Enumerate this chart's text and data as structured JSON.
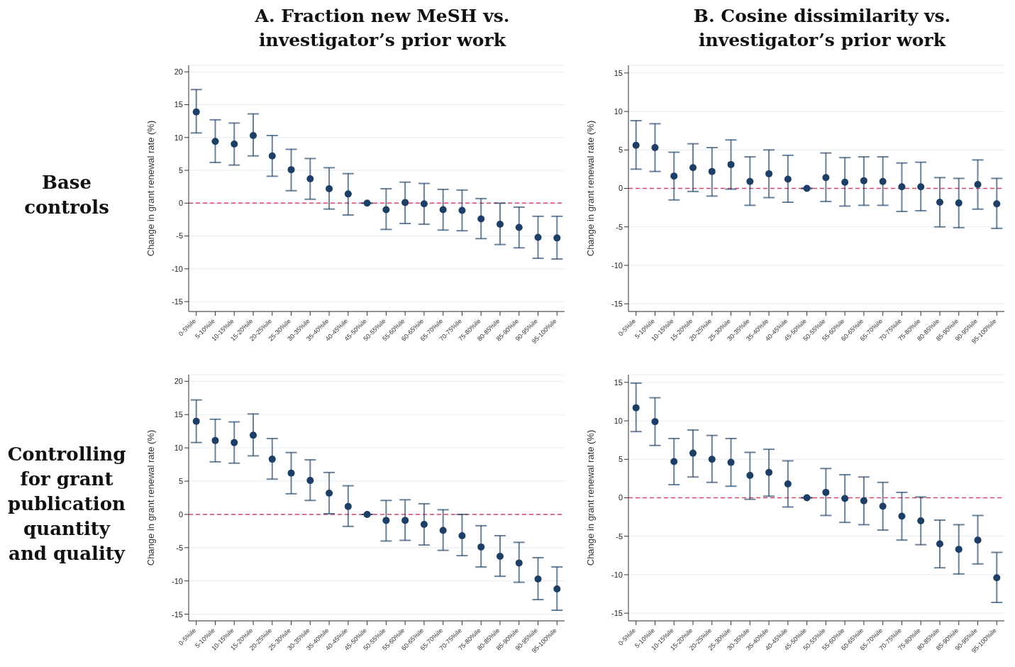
{
  "chart_data": [
    {
      "type": "scatter",
      "title": "A. Fraction new MeSH vs. investigator’s prior work",
      "annotations": [
        "Base controls"
      ],
      "ylabel": "Change in grant renewal rate (%)",
      "categories": [
        "0-5%ile",
        "5-10%ile",
        "10-15%ile",
        "15-20%ile",
        "20-25%ile",
        "25-30%ile",
        "30-35%ile",
        "35-40%ile",
        "40-45%ile",
        "45-50%ile",
        "50-55%ile",
        "55-60%ile",
        "60-65%ile",
        "65-70%ile",
        "70-75%ile",
        "75-80%ile",
        "80-85%ile",
        "85-90%ile",
        "90-95%ile",
        "95-100%ile"
      ],
      "ylim": [
        -16.5,
        21
      ],
      "yticks": [
        -15,
        -10,
        -5,
        0,
        5,
        10,
        15,
        20
      ],
      "grid": "y",
      "marker": "circle",
      "ref_lines": [
        {
          "axis": "y",
          "value": 0,
          "color": "#d9476b",
          "line_style": "dashed"
        }
      ],
      "series": [
        {
          "color": "#1b3f66",
          "values": [
            13.9,
            9.4,
            9.0,
            10.3,
            7.2,
            5.1,
            3.7,
            2.2,
            1.4,
            0,
            -1.0,
            0.1,
            -0.1,
            -1.0,
            -1.1,
            -2.4,
            -3.2,
            -3.7,
            -5.2,
            -5.3
          ],
          "errors": [
            [
              10.7,
              17.3
            ],
            [
              6.2,
              12.7
            ],
            [
              5.8,
              12.2
            ],
            [
              7.2,
              13.6
            ],
            [
              4.1,
              10.3
            ],
            [
              1.9,
              8.2
            ],
            [
              0.6,
              6.8
            ],
            [
              -0.9,
              5.4
            ],
            [
              -1.8,
              4.5
            ],
            null,
            [
              -4.0,
              2.2
            ],
            [
              -3.1,
              3.2
            ],
            [
              -3.2,
              3.0
            ],
            [
              -4.1,
              2.1
            ],
            [
              -4.2,
              2.0
            ],
            [
              -5.4,
              0.7
            ],
            [
              -6.3,
              0.0
            ],
            [
              -6.8,
              -0.6
            ],
            [
              -8.4,
              -2.0
            ],
            [
              -8.5,
              -2.0
            ]
          ]
        }
      ]
    },
    {
      "type": "scatter",
      "title": "B. Cosine dissimilarity vs. investigator’s prior work",
      "ylabel": "Change in grant renewal rate (%)",
      "categories": [
        "0-5%ile",
        "5-10%ile",
        "10-15%ile",
        "15-20%ile",
        "20-25%ile",
        "25-30%ile",
        "30-35%ile",
        "35-40%ile",
        "40-45%ile",
        "45-50%ile",
        "50-55%ile",
        "55-60%ile",
        "60-65%ile",
        "65-70%ile",
        "70-75%ile",
        "75-80%ile",
        "80-85%ile",
        "85-90%ile",
        "90-95%ile",
        "95-100%ile"
      ],
      "ylim": [
        -16,
        16
      ],
      "yticks": [
        -15,
        -10,
        -5,
        0,
        5,
        10,
        15
      ],
      "grid": "y",
      "marker": "circle",
      "ref_lines": [
        {
          "axis": "y",
          "value": 0,
          "color": "#d9476b",
          "line_style": "dashed"
        }
      ],
      "series": [
        {
          "color": "#1b3f66",
          "values": [
            5.6,
            5.3,
            1.6,
            2.7,
            2.2,
            3.1,
            0.9,
            1.9,
            1.2,
            0,
            1.4,
            0.8,
            1.0,
            0.9,
            0.2,
            0.2,
            -1.8,
            -1.9,
            0.5,
            -2.0
          ],
          "errors": [
            [
              2.5,
              8.8
            ],
            [
              2.2,
              8.4
            ],
            [
              -1.5,
              4.7
            ],
            [
              -0.4,
              5.8
            ],
            [
              -1.0,
              5.3
            ],
            [
              -0.1,
              6.3
            ],
            [
              -2.2,
              4.1
            ],
            [
              -1.2,
              5.0
            ],
            [
              -1.8,
              4.3
            ],
            null,
            [
              -1.7,
              4.6
            ],
            [
              -2.3,
              4.0
            ],
            [
              -2.2,
              4.1
            ],
            [
              -2.2,
              4.1
            ],
            [
              -3.0,
              3.3
            ],
            [
              -2.9,
              3.4
            ],
            [
              -5.0,
              1.4
            ],
            [
              -5.1,
              1.3
            ],
            [
              -2.7,
              3.7
            ],
            [
              -5.2,
              1.3
            ]
          ]
        }
      ]
    },
    {
      "type": "scatter",
      "annotations": [
        "Controlling for grant publication quantity and quality"
      ],
      "ylabel": "Change in grant renewal rate (%)",
      "categories": [
        "0-5%ile",
        "5-10%ile",
        "10-15%ile",
        "15-20%ile",
        "20-25%ile",
        "25-30%ile",
        "30-35%ile",
        "35-40%ile",
        "40-45%ile",
        "45-50%ile",
        "50-55%ile",
        "55-60%ile",
        "60-65%ile",
        "65-70%ile",
        "70-75%ile",
        "75-80%ile",
        "80-85%ile",
        "85-90%ile",
        "90-95%ile",
        "95-100%ile"
      ],
      "ylim": [
        -16,
        21
      ],
      "yticks": [
        -15,
        -10,
        -5,
        0,
        5,
        10,
        15,
        20
      ],
      "grid": "y",
      "marker": "circle",
      "ref_lines": [
        {
          "axis": "y",
          "value": 0,
          "color": "#d9476b",
          "line_style": "dashed"
        }
      ],
      "series": [
        {
          "color": "#1b3f66",
          "values": [
            14.0,
            11.1,
            10.8,
            11.9,
            8.3,
            6.2,
            5.1,
            3.2,
            1.2,
            0,
            -0.9,
            -0.9,
            -1.5,
            -2.4,
            -3.2,
            -4.9,
            -6.3,
            -7.3,
            -9.7,
            -11.2
          ],
          "errors": [
            [
              10.8,
              17.2
            ],
            [
              7.9,
              14.3
            ],
            [
              7.7,
              13.9
            ],
            [
              8.8,
              15.1
            ],
            [
              5.3,
              11.4
            ],
            [
              3.1,
              9.3
            ],
            [
              2.1,
              8.2
            ],
            [
              0.1,
              6.3
            ],
            [
              -1.8,
              4.3
            ],
            null,
            [
              -4.0,
              2.1
            ],
            [
              -3.9,
              2.2
            ],
            [
              -4.6,
              1.6
            ],
            [
              -5.4,
              0.7
            ],
            [
              -6.2,
              0.0
            ],
            [
              -7.9,
              -1.7
            ],
            [
              -9.3,
              -3.2
            ],
            [
              -10.2,
              -4.2
            ],
            [
              -12.8,
              -6.5
            ],
            [
              -14.4,
              -7.9
            ]
          ]
        }
      ]
    },
    {
      "type": "scatter",
      "ylabel": "Change in grant renewal rate (%)",
      "categories": [
        "0-5%ile",
        "5-10%ile",
        "10-15%ile",
        "15-20%ile",
        "20-25%ile",
        "25-30%ile",
        "30-35%ile",
        "35-40%ile",
        "40-45%ile",
        "45-50%ile",
        "50-55%ile",
        "55-60%ile",
        "60-65%ile",
        "65-70%ile",
        "70-75%ile",
        "75-80%ile",
        "80-85%ile",
        "85-90%ile",
        "90-95%ile",
        "95-100%ile"
      ],
      "ylim": [
        -16,
        16
      ],
      "yticks": [
        -15,
        -10,
        -5,
        0,
        5,
        10,
        15
      ],
      "grid": "y",
      "marker": "circle",
      "ref_lines": [
        {
          "axis": "y",
          "value": 0,
          "color": "#d9476b",
          "line_style": "dashed"
        }
      ],
      "series": [
        {
          "color": "#1b3f66",
          "values": [
            11.7,
            9.9,
            4.7,
            5.8,
            5.0,
            4.6,
            2.9,
            3.3,
            1.8,
            0,
            0.7,
            -0.1,
            -0.4,
            -1.1,
            -2.4,
            -3.0,
            -6.0,
            -6.7,
            -5.5,
            -10.4
          ],
          "errors": [
            [
              8.6,
              14.9
            ],
            [
              6.8,
              13.0
            ],
            [
              1.7,
              7.7
            ],
            [
              2.7,
              8.8
            ],
            [
              2.0,
              8.1
            ],
            [
              1.5,
              7.7
            ],
            [
              -0.2,
              5.9
            ],
            [
              0.2,
              6.3
            ],
            [
              -1.2,
              4.8
            ],
            null,
            [
              -2.3,
              3.8
            ],
            [
              -3.2,
              3.0
            ],
            [
              -3.5,
              2.7
            ],
            [
              -4.2,
              2.0
            ],
            [
              -5.5,
              0.7
            ],
            [
              -6.1,
              0.1
            ],
            [
              -9.1,
              -2.9
            ],
            [
              -9.9,
              -3.5
            ],
            [
              -8.6,
              -2.3
            ],
            [
              -13.6,
              -7.1
            ]
          ]
        }
      ]
    }
  ]
}
